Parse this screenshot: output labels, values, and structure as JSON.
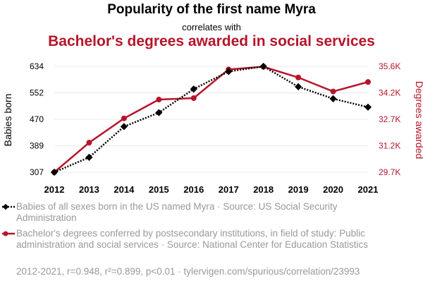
{
  "header": {
    "title": "Popularity of the first name Myra",
    "subtitle": "correlates with",
    "title2": "Bachelor's degrees awarded in social services"
  },
  "colors": {
    "series1": "#000000",
    "series2": "#b5152b",
    "legend_text": "#999999"
  },
  "legend": [
    {
      "text": "Babies of all sexes born in the US named Myra · Source: US Social Security Administration",
      "icon": "dotted-line-diamond-icon"
    },
    {
      "text": "Bachelor's degrees conferred by postsecondary institutions, in field of study: Public administration and social services · Source: National Center for Education Statistics",
      "icon": "line-circle-icon"
    }
  ],
  "footer": "2012-2021, r=0.948, r²=0.899, p<0.01 · tylervigen.com/spurious/correlation/23993",
  "chart_data": {
    "type": "line",
    "x": [
      2012,
      2013,
      2014,
      2015,
      2016,
      2017,
      2018,
      2019,
      2020,
      2021
    ],
    "ylabel_left": "Babies born",
    "ylabel_right": "Degrees awarded",
    "y_left_ticks": [
      "307",
      "389",
      "470",
      "552",
      "634"
    ],
    "y_right_ticks": [
      "29.7K",
      "31.2K",
      "32.7K",
      "34.2K",
      "35.6K"
    ],
    "y_left_range": [
      307,
      634
    ],
    "y_right_range": [
      29700,
      35600
    ],
    "series": [
      {
        "values": [
          307,
          353,
          448,
          491,
          564,
          618,
          634,
          571,
          534,
          508
        ],
        "axis": "left",
        "style": "dotted",
        "marker": "diamond",
        "color": "#000000"
      },
      {
        "values": [
          29700,
          31350,
          32700,
          33750,
          33830,
          35430,
          35580,
          34980,
          34200,
          34730
        ],
        "axis": "right",
        "style": "solid",
        "marker": "circle",
        "color": "#b5152b"
      }
    ]
  }
}
